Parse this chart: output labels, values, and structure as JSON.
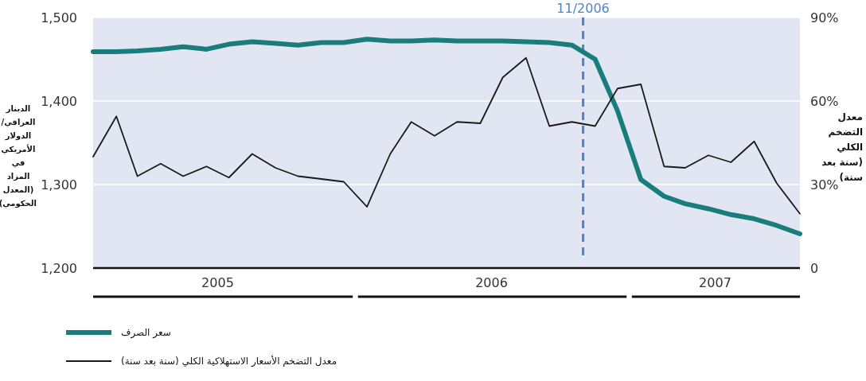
{
  "chart_data": {
    "type": "line",
    "ylabel": "الدينار العراقي/ الدولار الأمريكي في المزاد (المعدل الحكومي)",
    "y2label": "معدل التضخم الكلي (سنة بعد سنة)",
    "x": [
      "2005-01",
      "2005-02",
      "2005-03",
      "2005-04",
      "2005-05",
      "2005-06",
      "2005-07",
      "2005-08",
      "2005-09",
      "2005-10",
      "2005-11",
      "2005-12",
      "2006-01",
      "2006-02",
      "2006-03",
      "2006-04",
      "2006-05",
      "2006-06",
      "2006-07",
      "2006-08",
      "2006-09",
      "2006-10",
      "2006-11",
      "2006-12",
      "2007-01",
      "2007-02",
      "2007-03",
      "2007-04",
      "2007-05",
      "2007-06",
      "2007-07",
      "2007-08"
    ],
    "series": [
      {
        "name": "سعر الصرف",
        "color": "#1a7d7d",
        "values": [
          1459,
          1459,
          1460,
          1462,
          1465,
          1462,
          1468,
          1471,
          1469,
          1467,
          1470,
          1470,
          1474,
          1472,
          1472,
          1473,
          1472,
          1472,
          1472,
          1471,
          1470,
          1467,
          1450,
          1388,
          1306,
          1286,
          1277,
          1271,
          1264,
          1259,
          1251,
          1241
        ]
      },
      {
        "name": "معدل التضخم الأسعار الاستهلاكية الكلي (سنة بعد سنة)",
        "color": "#1a1a1a",
        "axis": "y2",
        "values": [
          40,
          54.5,
          33,
          37.5,
          33,
          36.5,
          32.5,
          41,
          36,
          33,
          32,
          31,
          22,
          41,
          52.5,
          47.5,
          52.5,
          52,
          68.5,
          75.5,
          51,
          52.5,
          51,
          64.5,
          66,
          36.5,
          36,
          40.5,
          38,
          45.5,
          30.5,
          19.5
        ]
      }
    ],
    "xlim": [
      "2005-01",
      "2007-08"
    ],
    "xticks": [
      {
        "value": "2005-06-16",
        "label": "2005"
      },
      {
        "value": "2006-06-16",
        "label": "2006"
      },
      {
        "value": "2007-04-10",
        "label": "2007"
      }
    ],
    "ylim": [
      1200,
      1500
    ],
    "yticks": [
      {
        "value": 1200,
        "label": "1,200"
      },
      {
        "value": 1300,
        "label": "1,300"
      },
      {
        "value": 1400,
        "label": "1,400"
      },
      {
        "value": 1500,
        "label": "1,500"
      }
    ],
    "y2lim": [
      0,
      90
    ],
    "y2ticks": [
      {
        "value": 0,
        "label": "0"
      },
      {
        "value": 30,
        "label": "30%"
      },
      {
        "value": 60,
        "label": "60%"
      },
      {
        "value": 90,
        "label": "90%"
      }
    ],
    "ref_lines": [
      {
        "axis": "x",
        "value": "2006-10-16",
        "label": "11/2006",
        "color": "#4a86c8",
        "line_style": "dashed"
      }
    ],
    "grid": "y",
    "legend": "bottom left"
  }
}
